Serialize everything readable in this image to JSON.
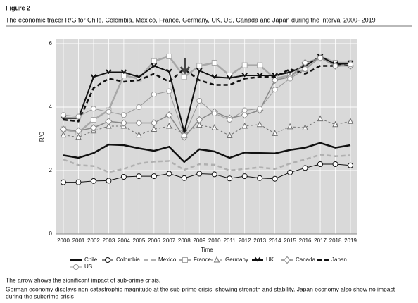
{
  "figure_label": "Figure 2",
  "notes": [
    "The arrow shows the significant impact of sub-prime crisis.",
    "German economy displays non-catastrophic magnitude at the sub-prime crisis, showing strength and stability. Japan economy also show no impact",
    "during the subprime crisis"
  ],
  "chart_data": {
    "type": "line",
    "title": "The economic tracer R/G for Chile, Colombia, Mexico, France, Germany, UK, US, Canada and Japan during the interval 2000- 2019",
    "x_label": "Time",
    "y_label": "R/G",
    "categories": [
      "2000",
      "2001",
      "2002",
      "2003",
      "2004",
      "2005",
      "2006",
      "2007",
      "2008",
      "2009",
      "2010",
      "2011",
      "2012",
      "2013",
      "2014",
      "2015",
      "2016",
      "2017",
      "2018",
      "2019"
    ],
    "ylim": [
      0,
      6
    ],
    "yticks": [
      0,
      2,
      4,
      6
    ],
    "grid": true,
    "series": [
      {
        "name": "Chile",
        "color": "#111111",
        "width": 2.5,
        "dash": "none",
        "marker": "none",
        "values": [
          2.48,
          2.4,
          2.55,
          2.82,
          2.8,
          2.7,
          2.62,
          2.75,
          2.27,
          2.67,
          2.6,
          2.4,
          2.57,
          2.55,
          2.54,
          2.65,
          2.72,
          2.87,
          2.72,
          2.8
        ]
      },
      {
        "name": "Colombia",
        "color": "#111111",
        "width": 1,
        "dash": "none",
        "marker": "circle",
        "values": [
          1.63,
          1.63,
          1.67,
          1.68,
          1.8,
          1.82,
          1.82,
          1.9,
          1.76,
          1.9,
          1.88,
          1.75,
          1.82,
          1.76,
          1.74,
          1.94,
          2.08,
          2.2,
          2.2,
          2.16
        ]
      },
      {
        "name": "Mexico",
        "color": "#b0b0b0",
        "width": 2.5,
        "dash": "6 4",
        "marker": "none",
        "values": [
          2.35,
          2.17,
          2.14,
          1.95,
          2.05,
          2.22,
          2.28,
          2.3,
          2.02,
          2.2,
          2.18,
          2.0,
          2.05,
          2.1,
          2.05,
          2.22,
          2.35,
          2.5,
          2.45,
          2.48
        ]
      },
      {
        "name": "France",
        "color": "#a8a8a8",
        "width": 2.5,
        "dash": "none",
        "marker": "square",
        "values": [
          3.3,
          3.2,
          3.6,
          3.9,
          5.0,
          4.9,
          5.45,
          5.6,
          4.95,
          5.3,
          5.4,
          5.0,
          5.32,
          5.32,
          4.9,
          5.0,
          5.2,
          5.6,
          5.4,
          5.4
        ]
      },
      {
        "name": "Germany",
        "color": "#707070",
        "width": 1,
        "dash": "3 3",
        "marker": "triangle",
        "values": [
          3.12,
          3.05,
          3.25,
          3.4,
          3.4,
          3.12,
          3.3,
          3.4,
          3.15,
          3.43,
          3.35,
          3.1,
          3.4,
          3.45,
          3.17,
          3.38,
          3.35,
          3.63,
          3.45,
          3.55
        ]
      },
      {
        "name": "UK",
        "color": "#111111",
        "width": 2,
        "dash": "none",
        "marker": "x",
        "values": [
          3.65,
          3.65,
          4.95,
          5.1,
          5.1,
          4.95,
          5.3,
          5.12,
          3.2,
          5.15,
          4.95,
          4.92,
          5.0,
          5.0,
          5.0,
          5.1,
          5.3,
          5.6,
          5.35,
          5.38
        ]
      },
      {
        "name": "Canada",
        "color": "#888888",
        "width": 1.5,
        "dash": "none",
        "marker": "diamond",
        "values": [
          3.3,
          3.25,
          3.35,
          3.55,
          3.5,
          3.5,
          3.5,
          3.75,
          3.05,
          3.6,
          3.85,
          3.65,
          3.75,
          3.9,
          4.85,
          4.95,
          5.4,
          5.55,
          5.3,
          5.3
        ]
      },
      {
        "name": "Japan",
        "color": "#111111",
        "width": 2.5,
        "dash": "6 4",
        "marker": "none",
        "values": [
          3.6,
          3.55,
          4.6,
          4.9,
          4.8,
          4.85,
          5.05,
          4.8,
          5.2,
          4.85,
          4.7,
          4.7,
          4.9,
          4.95,
          4.95,
          5.2,
          5.05,
          5.3,
          5.3,
          5.35
        ]
      },
      {
        "name": "US",
        "color": "#999999",
        "width": 1,
        "dash": "none",
        "marker": "circle",
        "values": [
          3.75,
          3.7,
          3.95,
          3.85,
          3.75,
          4.0,
          4.4,
          4.5,
          3.1,
          4.2,
          3.8,
          3.6,
          3.9,
          3.95,
          4.55,
          4.9,
          5.2,
          5.55,
          5.3,
          5.35
        ]
      }
    ]
  }
}
